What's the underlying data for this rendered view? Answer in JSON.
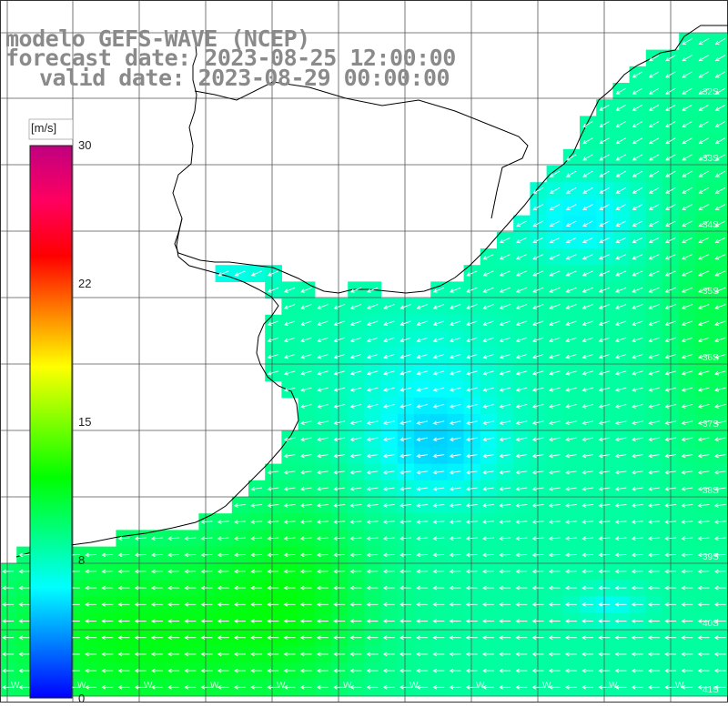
{
  "title": {
    "line1": "modelo GEFS-WAVE (NCEP)",
    "line2": "forecast date: 2023-08-25 12:00:00",
    "line3": "valid date: 2023-08-29 00:00:00"
  },
  "colorbar": {
    "units": "[m/s]",
    "ticks": [
      "30",
      "22",
      "15",
      "8",
      "0"
    ],
    "min": 0,
    "max": 30,
    "colors": [
      "#0000ff",
      "#0080ff",
      "#00ffff",
      "#00ff80",
      "#00ff00",
      "#80ff00",
      "#ffff00",
      "#ff8000",
      "#ff0000",
      "#ff0060",
      "#c00080"
    ]
  },
  "map_labels": {
    "latitudes": [
      "32S",
      "33S",
      "34S",
      "35S",
      "36S",
      "37S",
      "38S",
      "39S",
      "40S",
      "41S"
    ],
    "longitudes": [
      "W",
      "W",
      "W",
      "W",
      "W",
      "W",
      "W",
      "W",
      "W",
      "W",
      "W"
    ]
  },
  "colors": {
    "land": "#ffffff",
    "grid": "#555555",
    "coast": "#000000",
    "arrow": "#ffffff",
    "title": "#8a8a8a"
  }
}
